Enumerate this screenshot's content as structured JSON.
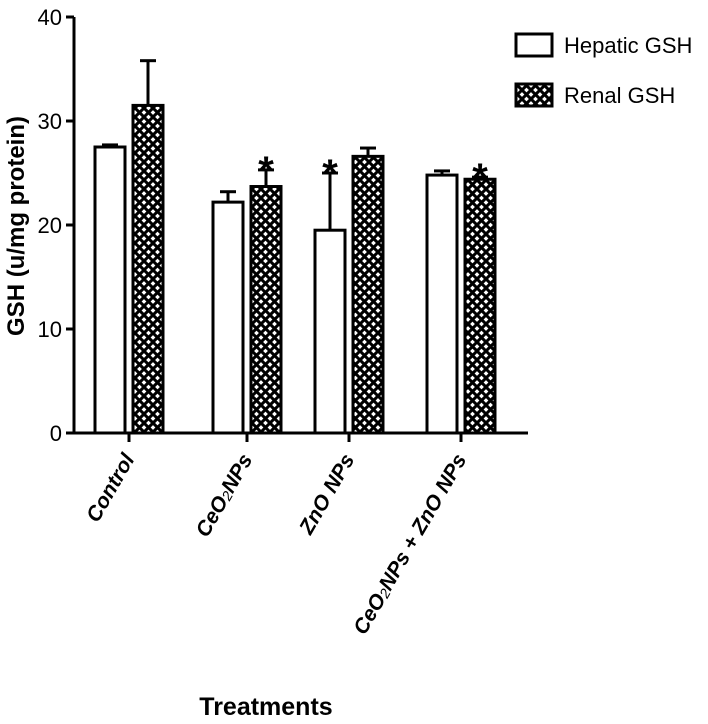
{
  "chart_data": {
    "type": "bar",
    "title": "",
    "xlabel": "Treatments",
    "ylabel": "GSH (u/mg protein)",
    "ylim": [
      0,
      40
    ],
    "yticks": [
      "0",
      "10",
      "20",
      "30",
      "40"
    ],
    "categories": [
      {
        "main": "Control",
        "parts": []
      },
      {
        "main": "CeO2NPs",
        "parts": [
          {
            "t": "CeO"
          },
          {
            "t": "2",
            "sub": true
          },
          {
            "t": "NPs"
          }
        ]
      },
      {
        "main": "ZnO NPs",
        "parts": []
      },
      {
        "main": "CeO2NPs + ZnO NPs",
        "parts": [
          {
            "t": "CeO"
          },
          {
            "t": "2",
            "sub": true
          },
          {
            "t": "NPs + ZnO NPs"
          }
        ]
      }
    ],
    "series": [
      {
        "name": "Hepatic GSH",
        "pattern": "open",
        "values": [
          27.5,
          22.2,
          19.5,
          24.8
        ],
        "errors": [
          0.2,
          1.0,
          5.5,
          0.4
        ],
        "significance": [
          "",
          "",
          "*",
          ""
        ]
      },
      {
        "name": "Renal GSH",
        "pattern": "crosshatch",
        "values": [
          31.5,
          23.7,
          26.6,
          24.4
        ],
        "errors": [
          4.3,
          1.6,
          0.8,
          0.2
        ],
        "significance": [
          "",
          "*",
          "",
          "*"
        ]
      }
    ],
    "legend_position": "top-right",
    "grid": false
  }
}
